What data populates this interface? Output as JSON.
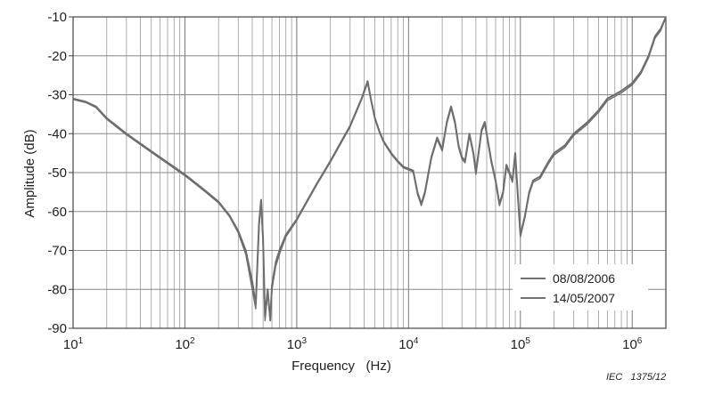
{
  "chart_data": {
    "type": "line",
    "xlabel": "Frequency   (Hz)",
    "ylabel": "Amplitude   (dB)",
    "xscale": "log",
    "xlim": [
      10,
      2000000
    ],
    "ylim": [
      -90,
      -10
    ],
    "grid": true,
    "legend_position": "bottom-right",
    "x_ticks": [
      {
        "base": "10",
        "exp": "1"
      },
      {
        "base": "10",
        "exp": "2"
      },
      {
        "base": "10",
        "exp": "3"
      },
      {
        "base": "10",
        "exp": "4"
      },
      {
        "base": "10",
        "exp": "5"
      },
      {
        "base": "10",
        "exp": "6"
      }
    ],
    "y_ticks": [
      "-10",
      "-20",
      "-30",
      "-40",
      "-50",
      "-60",
      "-70",
      "-80",
      "-90"
    ],
    "line_color": "#6e6e6e",
    "series": [
      {
        "name": "08/08/2006",
        "x": [
          10,
          13,
          16,
          20,
          30,
          50,
          100,
          150,
          200,
          250,
          300,
          350,
          400,
          430,
          460,
          480,
          500,
          520,
          550,
          580,
          600,
          650,
          700,
          800,
          1000,
          1500,
          2000,
          3000,
          3800,
          4300,
          4600,
          5000,
          5500,
          6000,
          7000,
          8000,
          9000,
          10000,
          11000,
          12000,
          13000,
          14000,
          16000,
          18000,
          20000,
          22000,
          24000,
          26000,
          28000,
          30000,
          32000,
          35000,
          38000,
          40000,
          45000,
          48000,
          50000,
          55000,
          60000,
          65000,
          70000,
          75000,
          80000,
          85000,
          90000,
          95000,
          100000,
          110000,
          120000,
          130000,
          150000,
          180000,
          200000,
          250000,
          300000,
          400000,
          500000,
          600000,
          800000,
          1000000,
          1200000,
          1400000,
          1600000,
          1800000,
          2000000
        ],
        "y": [
          -31,
          -31.8,
          -33,
          -36,
          -40,
          -44.5,
          -50.5,
          -54.5,
          -57.5,
          -61,
          -65,
          -70,
          -78,
          -84,
          -63,
          -57,
          -67,
          -87,
          -80,
          -88,
          -79,
          -73,
          -70,
          -66,
          -62,
          -53,
          -47,
          -38,
          -31,
          -26.5,
          -31,
          -36,
          -39.5,
          -42,
          -45,
          -47,
          -48.5,
          -49,
          -49.5,
          -55,
          -58,
          -55,
          -46,
          -41,
          -44,
          -37,
          -33,
          -37,
          -43,
          -46,
          -47,
          -40,
          -45,
          -50,
          -39,
          -37,
          -40,
          -47,
          -52,
          -58,
          -55,
          -48,
          -50,
          -52,
          -45,
          -56,
          -66,
          -61,
          -55,
          -52,
          -51,
          -47,
          -45,
          -43,
          -40,
          -37,
          -34,
          -31,
          -29,
          -27,
          -24,
          -20,
          -15,
          -13,
          -10
        ]
      },
      {
        "name": "14/05/2007",
        "x": [
          10,
          13,
          16,
          20,
          30,
          50,
          100,
          150,
          200,
          250,
          300,
          350,
          400,
          430,
          460,
          480,
          500,
          520,
          550,
          580,
          600,
          650,
          700,
          800,
          1000,
          1500,
          2000,
          3000,
          3800,
          4300,
          4600,
          5000,
          5500,
          6000,
          7000,
          8000,
          9000,
          10000,
          11000,
          12000,
          13000,
          14000,
          16000,
          18000,
          20000,
          22000,
          24000,
          26000,
          28000,
          30000,
          32000,
          35000,
          38000,
          40000,
          45000,
          48000,
          50000,
          55000,
          60000,
          65000,
          70000,
          75000,
          80000,
          85000,
          90000,
          95000,
          100000,
          110000,
          120000,
          130000,
          150000,
          180000,
          200000,
          250000,
          300000,
          400000,
          500000,
          600000,
          800000,
          1000000,
          1200000,
          1400000,
          1600000,
          1800000,
          2000000
        ],
        "y": [
          -31.2,
          -32,
          -33.3,
          -36.3,
          -40.3,
          -44.8,
          -50.8,
          -54.8,
          -57.8,
          -61.3,
          -65.5,
          -71,
          -80,
          -85,
          -64,
          -58,
          -68,
          -88,
          -81,
          -88,
          -80,
          -74,
          -71,
          -66.5,
          -62.3,
          -53.3,
          -47.3,
          -38.3,
          -31.3,
          -27,
          -31.3,
          -36.3,
          -39.8,
          -42.3,
          -45.3,
          -47.3,
          -48.8,
          -49.3,
          -49.8,
          -55.5,
          -58.5,
          -55.5,
          -46.5,
          -41.5,
          -44.5,
          -37.5,
          -33.5,
          -37.5,
          -43.5,
          -46.5,
          -47.5,
          -40.5,
          -45.5,
          -50.5,
          -39.5,
          -37.5,
          -40.5,
          -47.5,
          -52.5,
          -58.5,
          -55.5,
          -48.5,
          -50.5,
          -52.5,
          -45.5,
          -56.5,
          -66.5,
          -61.5,
          -55.5,
          -52.5,
          -51.5,
          -47.5,
          -45.5,
          -43.5,
          -40.5,
          -37.5,
          -34.5,
          -31.5,
          -29.5,
          -27.5,
          -24.5,
          -20.5,
          -15.5,
          -13.5,
          -10.2
        ]
      }
    ]
  },
  "figure_credit": "IEC   1375/12"
}
